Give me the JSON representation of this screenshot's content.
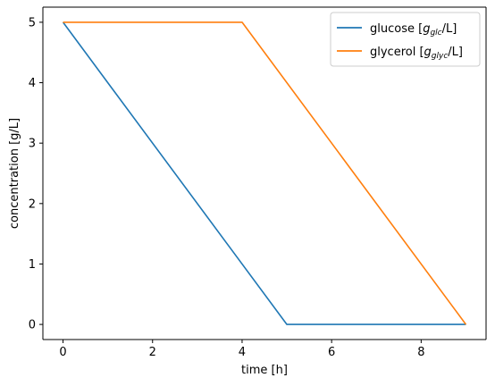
{
  "chart_data": {
    "type": "line",
    "xlabel": "time [h]",
    "ylabel": "concentration [g/L]",
    "xlim": [
      -0.45,
      9.45
    ],
    "ylim": [
      -0.25,
      5.25
    ],
    "xticks": [
      0,
      2,
      4,
      6,
      8
    ],
    "yticks": [
      0,
      1,
      2,
      3,
      4,
      5
    ],
    "grid": false,
    "legend_position": "top-right",
    "series": [
      {
        "name": "glucose",
        "legend_prefix": "glucose [",
        "legend_math_base": "g",
        "legend_math_sub": "glc",
        "legend_suffix": "/L]",
        "color": "#1f77b4",
        "x": [
          0,
          5,
          9
        ],
        "y": [
          5,
          0,
          0
        ]
      },
      {
        "name": "glycerol",
        "legend_prefix": "glycerol [",
        "legend_math_base": "g",
        "legend_math_sub": "glyc",
        "legend_suffix": "/L]",
        "color": "#ff7f0e",
        "x": [
          0,
          4,
          9
        ],
        "y": [
          5,
          5,
          0
        ]
      }
    ]
  }
}
